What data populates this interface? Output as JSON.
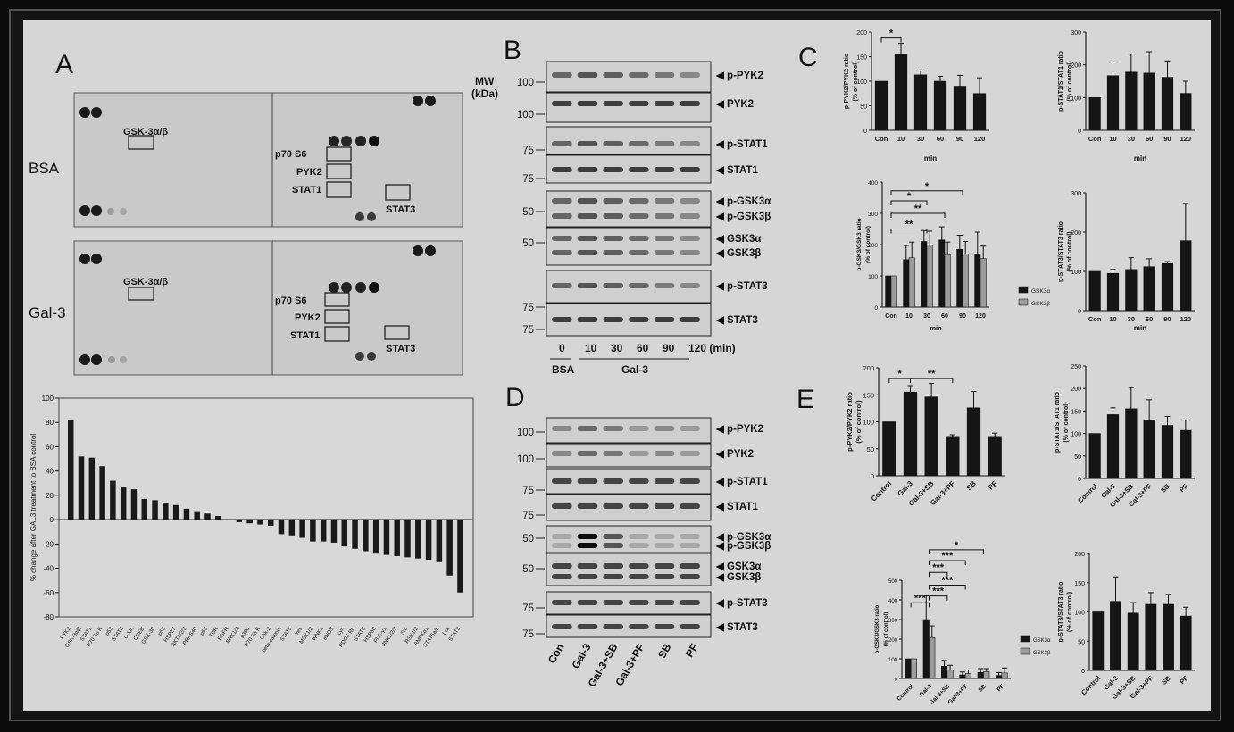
{
  "panel_labels": {
    "a": "A",
    "b": "B",
    "c": "C",
    "d": "D",
    "e": "E"
  },
  "panel_a": {
    "row_labels": [
      "BSA",
      "Gal-3"
    ],
    "boxes_left": "GSK-3α/β",
    "boxes_right": [
      "p70 S6",
      "PYK2",
      "STAT1"
    ],
    "box_far": "STAT3"
  },
  "panel_b": {
    "mw_label_1": "MW",
    "mw_label_2": "(kDa)",
    "mw": [
      "100",
      "100",
      "75",
      "75",
      "50",
      "50",
      "75",
      "75"
    ],
    "bands": [
      "p-PYK2",
      "PYK2",
      "p-STAT1",
      "STAT1",
      "p-GSK3α",
      "p-GSK3β",
      "GSK3α",
      "GSK3β",
      "p-STAT3",
      "STAT3"
    ],
    "lanes": [
      "0",
      "10",
      "30",
      "60",
      "90",
      "120 (min)"
    ],
    "groups": [
      "BSA",
      "Gal-3"
    ]
  },
  "panel_d": {
    "mw": [
      "100",
      "100",
      "75",
      "75",
      "50",
      "50",
      "75",
      "75"
    ],
    "bands": [
      "p-PYK2",
      "PYK2",
      "p-STAT1",
      "STAT1",
      "p-GSK3α",
      "p-GSK3β",
      "GSK3α",
      "GSK3β",
      "p-STAT3",
      "STAT3"
    ],
    "lanes": [
      "Con",
      "Gal-3",
      "Gal-3+SB",
      "Gal-3+PF",
      "SB",
      "PF"
    ]
  },
  "significance": {
    "one": "*",
    "two": "**",
    "three": "***"
  },
  "chart_data": [
    {
      "id": "a_bar",
      "type": "bar",
      "ylabel": "% change after GAL3 treatment to BSA control",
      "ylim": [
        -80,
        100
      ],
      "yticks": [
        -80,
        -60,
        -40,
        -20,
        0,
        20,
        40,
        60,
        80,
        100
      ],
      "categories": [
        "PYK2",
        "GSK-3α/β",
        "STAT1",
        "P70 S6 K",
        "p53",
        "STAT2",
        "c-Jun",
        "CREB",
        "GSK-3β",
        "p53",
        "HSP27",
        "AKT1/2/3",
        "PRAS40",
        "p53",
        "TOR",
        "EGFR",
        "ERK1/2",
        "p38α",
        "P70 S6 K",
        "Chk-2",
        "beta-catenin",
        "STAT5",
        "Yes",
        "MSK1/2",
        "WNK1",
        "eNOS",
        "Lyn",
        "PDGF Rb",
        "STAT6",
        "HSP60",
        "PLC-γ1",
        "JNK1/2/3",
        "Src",
        "RSK1/2",
        "AMPKα1",
        "STAT5a/b",
        "Lck",
        "STAT3"
      ],
      "values": [
        82,
        52,
        51,
        44,
        32,
        27,
        25,
        17,
        16,
        14,
        12,
        9,
        7,
        5,
        3,
        0,
        -2,
        -3,
        -4,
        -5,
        -12,
        -13,
        -15,
        -18,
        -18,
        -19,
        -22,
        -24,
        -26,
        -28,
        -29,
        -30,
        -31,
        -32,
        -33,
        -35,
        -46,
        -60
      ]
    },
    {
      "id": "c_pyk2",
      "type": "bar",
      "ylabel": "p-PYK2/PYK2 ratio (% of control)",
      "xlabel": "min",
      "categories": [
        "Con",
        "10",
        "30",
        "60",
        "90",
        "120"
      ],
      "values": [
        100,
        155,
        113,
        100,
        90,
        75
      ],
      "errors": [
        0,
        22,
        8,
        10,
        22,
        32
      ],
      "ylim": [
        0,
        200
      ],
      "yticks": [
        0,
        50,
        100,
        150,
        200
      ]
    },
    {
      "id": "c_stat1",
      "type": "bar",
      "ylabel": "p-STAT1/STAT1 ratio (% of control)",
      "xlabel": "min",
      "categories": [
        "Con",
        "10",
        "30",
        "60",
        "90",
        "120"
      ],
      "values": [
        100,
        167,
        178,
        175,
        162,
        113
      ],
      "errors": [
        0,
        42,
        55,
        65,
        50,
        37
      ],
      "ylim": [
        0,
        300
      ],
      "yticks": [
        0,
        100,
        200,
        300
      ]
    },
    {
      "id": "c_gsk3",
      "type": "bar",
      "ylabel": "p-GSK3/GSK3 ratio (% of control)",
      "xlabel": "min",
      "categories": [
        "Con",
        "10",
        "30",
        "60",
        "90",
        "120"
      ],
      "series": [
        {
          "name": "GSK3α",
          "values": [
            100,
            152,
            210,
            215,
            185,
            170
          ],
          "errors": [
            0,
            45,
            35,
            42,
            45,
            70
          ]
        },
        {
          "name": "GSK3β",
          "values": [
            100,
            158,
            198,
            168,
            170,
            155
          ],
          "errors": [
            0,
            50,
            45,
            40,
            40,
            40
          ]
        }
      ],
      "ylim": [
        0,
        400
      ],
      "yticks": [
        0,
        100,
        200,
        300,
        400
      ]
    },
    {
      "id": "c_stat3",
      "type": "bar",
      "ylabel": "p-STAT3/STAT3 ratio (% of control)",
      "xlabel": "min",
      "categories": [
        "Con",
        "10",
        "30",
        "60",
        "90",
        "120"
      ],
      "values": [
        100,
        95,
        105,
        112,
        120,
        178
      ],
      "errors": [
        0,
        10,
        30,
        20,
        5,
        95
      ],
      "ylim": [
        0,
        300
      ],
      "yticks": [
        0,
        100,
        200,
        300
      ]
    },
    {
      "id": "e_pyk2",
      "type": "bar",
      "ylabel": "p-PYK2/PYK2 ratio (% of control)",
      "categories": [
        "Control",
        "Gal-3",
        "Gal-3+SB",
        "Gal-3+PF",
        "SB",
        "PF"
      ],
      "values": [
        100,
        155,
        146,
        73,
        126,
        73
      ],
      "errors": [
        0,
        12,
        25,
        3,
        30,
        6
      ],
      "ylim": [
        0,
        200
      ],
      "yticks": [
        0,
        50,
        100,
        150,
        200
      ]
    },
    {
      "id": "e_stat1",
      "type": "bar",
      "ylabel": "p-STAT1/STAT1 ratio (% of control)",
      "categories": [
        "Control",
        "Gal-3",
        "Gal-3+SB",
        "Gal-3+PF",
        "SB",
        "PF"
      ],
      "values": [
        100,
        142,
        155,
        130,
        118,
        107
      ],
      "errors": [
        0,
        15,
        47,
        45,
        20,
        23
      ],
      "ylim": [
        0,
        250
      ],
      "yticks": [
        0,
        50,
        100,
        150,
        200,
        250
      ]
    },
    {
      "id": "e_gsk3",
      "type": "bar",
      "ylabel": "p-GSK3/GSK3 ratio (% of control)",
      "categories": [
        "Control",
        "Gal-3",
        "Gal-3+SB",
        "Gal-3+PF",
        "SB",
        "PF"
      ],
      "series": [
        {
          "name": "GSK3α",
          "values": [
            100,
            300,
            62,
            18,
            30,
            15
          ],
          "errors": [
            0,
            120,
            30,
            15,
            20,
            15
          ]
        },
        {
          "name": "GSK3β",
          "values": [
            100,
            208,
            42,
            25,
            35,
            28
          ],
          "errors": [
            0,
            60,
            25,
            18,
            15,
            25
          ]
        }
      ],
      "ylim": [
        0,
        500
      ],
      "yticks": [
        0,
        100,
        200,
        300,
        400,
        500
      ]
    },
    {
      "id": "e_stat3",
      "type": "bar",
      "ylabel": "p-STAT3/STAT3 ratio (% of control)",
      "categories": [
        "Control",
        "Gal-3",
        "Gal-3+SB",
        "Gal-3+PF",
        "SB",
        "PF"
      ],
      "values": [
        100,
        118,
        98,
        113,
        113,
        93
      ],
      "errors": [
        0,
        42,
        18,
        20,
        17,
        15
      ],
      "ylim": [
        0,
        200
      ],
      "yticks": [
        0,
        50,
        100,
        150,
        200
      ]
    }
  ]
}
